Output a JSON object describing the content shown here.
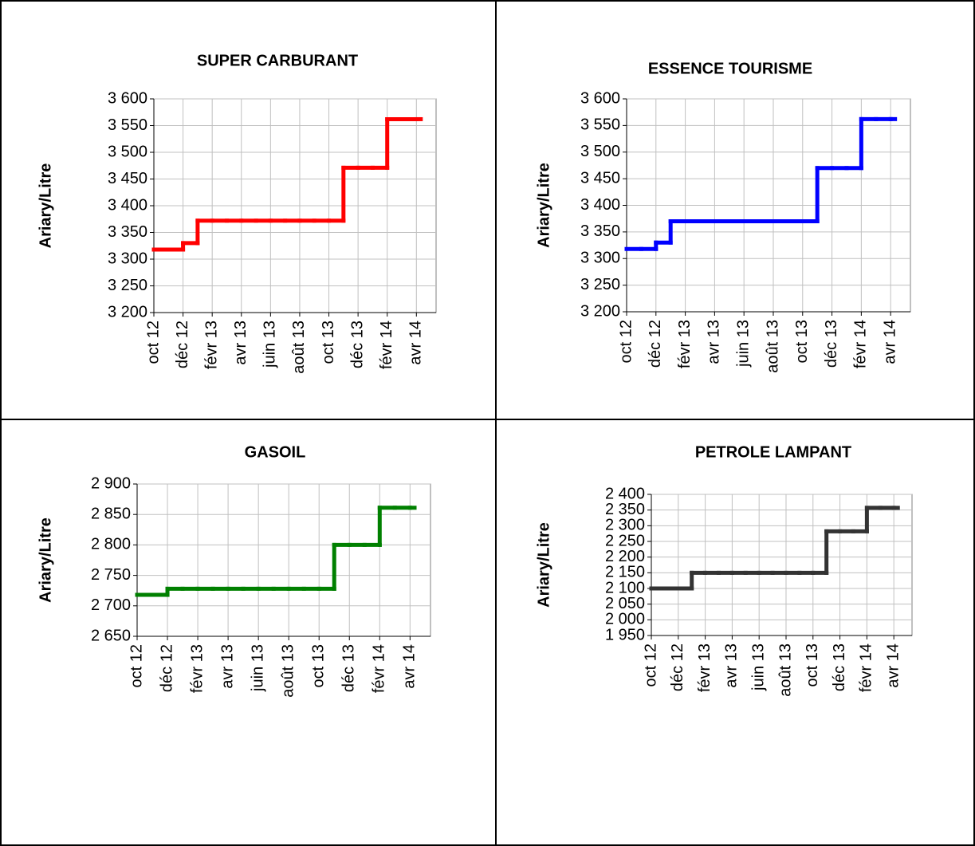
{
  "chart_data": [
    {
      "type": "line",
      "step": "post",
      "title": "SUPER CARBURANT",
      "y_label": "Ariary/Litre",
      "categories": [
        "oct 12",
        null,
        "déc 12",
        null,
        "févr 13",
        null,
        "avr 13",
        null,
        "juin 13",
        null,
        "août 13",
        null,
        "oct 13",
        null,
        "déc 13",
        null,
        "févr 14",
        null,
        "avr 14"
      ],
      "series": [
        {
          "color": "#ff0000",
          "values": [
            3318,
            3318,
            3330,
            3372,
            3372,
            3372,
            3372,
            3372,
            3372,
            3372,
            3372,
            3372,
            3372,
            3471,
            3471,
            3471,
            3562,
            3562,
            3562
          ]
        }
      ],
      "ylim": [
        3200,
        3600
      ],
      "yticks": [
        {
          "value": 3200,
          "label": "3 200"
        },
        {
          "value": 3250,
          "label": "3 250"
        },
        {
          "value": 3300,
          "label": "3 300"
        },
        {
          "value": 3350,
          "label": "3 350"
        },
        {
          "value": 3400,
          "label": "3 400"
        },
        {
          "value": 3450,
          "label": "3 450"
        },
        {
          "value": 3500,
          "label": "3 500"
        },
        {
          "value": 3550,
          "label": "3 550"
        },
        {
          "value": 3600,
          "label": "3 600"
        }
      ],
      "grid": true
    },
    {
      "type": "line",
      "step": "post",
      "title": "ESSENCE TOURISME",
      "y_label": "Ariary/Litre",
      "categories": [
        "oct 12",
        null,
        "déc 12",
        null,
        "févr 13",
        null,
        "avr 13",
        null,
        "juin 13",
        null,
        "août 13",
        null,
        "oct 13",
        null,
        "déc 13",
        null,
        "févr 14",
        null,
        "avr 14"
      ],
      "series": [
        {
          "color": "#0000ff",
          "values": [
            3318,
            3318,
            3330,
            3370,
            3370,
            3370,
            3370,
            3370,
            3370,
            3370,
            3370,
            3370,
            3370,
            3470,
            3470,
            3470,
            3562,
            3562,
            3562
          ]
        }
      ],
      "ylim": [
        3200,
        3600
      ],
      "yticks": [
        {
          "value": 3200,
          "label": "3 200"
        },
        {
          "value": 3250,
          "label": "3 250"
        },
        {
          "value": 3300,
          "label": "3 300"
        },
        {
          "value": 3350,
          "label": "3 350"
        },
        {
          "value": 3400,
          "label": "3 400"
        },
        {
          "value": 3450,
          "label": "3 450"
        },
        {
          "value": 3500,
          "label": "3 500"
        },
        {
          "value": 3550,
          "label": "3 550"
        },
        {
          "value": 3600,
          "label": "3 600"
        }
      ],
      "grid": true
    },
    {
      "type": "line",
      "step": "post",
      "title": "GASOIL",
      "y_label": "Ariary/Litre",
      "categories": [
        "oct 12",
        null,
        "déc 12",
        null,
        "févr 13",
        null,
        "avr 13",
        null,
        "juin 13",
        null,
        "août 13",
        null,
        "oct 13",
        null,
        "déc 13",
        null,
        "févr 14",
        null,
        "avr 14"
      ],
      "series": [
        {
          "color": "#008000",
          "values": [
            2718,
            2718,
            2728,
            2728,
            2728,
            2728,
            2728,
            2728,
            2728,
            2728,
            2728,
            2728,
            2728,
            2800,
            2800,
            2800,
            2861,
            2861,
            2861
          ]
        }
      ],
      "ylim": [
        2650,
        2900
      ],
      "yticks": [
        {
          "value": 2650,
          "label": "2 650"
        },
        {
          "value": 2700,
          "label": "2 700"
        },
        {
          "value": 2750,
          "label": "2 750"
        },
        {
          "value": 2800,
          "label": "2 800"
        },
        {
          "value": 2850,
          "label": "2 850"
        },
        {
          "value": 2900,
          "label": "2 900"
        }
      ],
      "grid": true
    },
    {
      "type": "line",
      "step": "post",
      "title": "PETROLE LAMPANT",
      "y_label": "Ariary/Litre",
      "categories": [
        "oct 12",
        null,
        "déc 12",
        null,
        "févr 13",
        null,
        "avr 13",
        null,
        "juin 13",
        null,
        "août 13",
        null,
        "oct 13",
        null,
        "déc 13",
        null,
        "févr 14",
        null,
        "avr 14"
      ],
      "series": [
        {
          "color": "#333333",
          "values": [
            2100,
            2100,
            2100,
            2150,
            2150,
            2150,
            2150,
            2150,
            2150,
            2150,
            2150,
            2150,
            2150,
            2282,
            2282,
            2282,
            2357,
            2357,
            2357
          ]
        }
      ],
      "ylim": [
        1950,
        2400
      ],
      "yticks": [
        {
          "value": 1950,
          "label": "1 950"
        },
        {
          "value": 2000,
          "label": "2 000"
        },
        {
          "value": 2050,
          "label": "2 050"
        },
        {
          "value": 2100,
          "label": "2 100"
        },
        {
          "value": 2150,
          "label": "2 150"
        },
        {
          "value": 2200,
          "label": "2 200"
        },
        {
          "value": 2250,
          "label": "2 250"
        },
        {
          "value": 2300,
          "label": "2 300"
        },
        {
          "value": 2350,
          "label": "2 350"
        },
        {
          "value": 2400,
          "label": "2 400"
        }
      ],
      "grid": true
    }
  ]
}
